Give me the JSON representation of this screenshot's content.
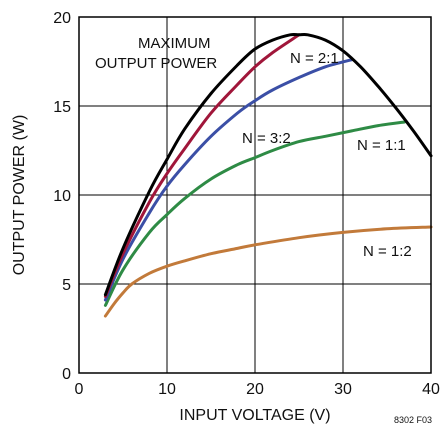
{
  "chart_data": {
    "type": "line",
    "title": "",
    "xlabel": "INPUT VOLTAGE (V)",
    "ylabel": "OUTPUT POWER (W)",
    "xlim": [
      0,
      40
    ],
    "ylim": [
      0,
      20
    ],
    "x_ticks": [
      "0",
      "10",
      "20",
      "30",
      "40"
    ],
    "y_ticks": [
      "0",
      "5",
      "10",
      "15",
      "20"
    ],
    "grid": true,
    "figure_code": "8302 F03",
    "series": [
      {
        "name": "MAXIMUM OUTPUT POWER",
        "label_lines": [
          "MAXIMUM",
          "OUTPUT POWER"
        ],
        "color": "#000000",
        "x": [
          3,
          5,
          8,
          10,
          12,
          15,
          18,
          20,
          22,
          24,
          25,
          26,
          28,
          30,
          32,
          34,
          36,
          38,
          40
        ],
        "y": [
          4.4,
          7.0,
          10.2,
          12.0,
          13.7,
          15.7,
          17.3,
          18.2,
          18.7,
          19.0,
          19.0,
          19.0,
          18.7,
          18.1,
          17.2,
          16.1,
          14.9,
          13.6,
          12.2
        ]
      },
      {
        "name": "N = 2:1",
        "color": "#a0163a",
        "x": [
          3,
          5,
          8,
          10,
          12,
          15,
          18,
          20,
          22,
          25
        ],
        "y": [
          4.3,
          6.7,
          9.6,
          11.2,
          12.6,
          14.6,
          16.2,
          17.2,
          18.0,
          19.0
        ]
      },
      {
        "name": "N = 3:2",
        "color": "#3b4fa6",
        "x": [
          3,
          5,
          8,
          10,
          12,
          15,
          18,
          20,
          22,
          25,
          28,
          31
        ],
        "y": [
          4.1,
          6.4,
          9.0,
          10.5,
          11.7,
          13.3,
          14.6,
          15.3,
          15.9,
          16.6,
          17.2,
          17.6
        ]
      },
      {
        "name": "N = 1:1",
        "color": "#2e8b45",
        "x": [
          3,
          5,
          8,
          10,
          12,
          15,
          18,
          20,
          22,
          25,
          28,
          31,
          34,
          37
        ],
        "y": [
          3.8,
          5.8,
          7.9,
          8.9,
          9.8,
          10.9,
          11.7,
          12.1,
          12.5,
          13.0,
          13.3,
          13.6,
          13.9,
          14.1
        ]
      },
      {
        "name": "N = 1:2",
        "color": "#c27a3a",
        "x": [
          3,
          4,
          5,
          6,
          8,
          10,
          12,
          15,
          18,
          20,
          25,
          30,
          35,
          40
        ],
        "y": [
          3.2,
          3.9,
          4.5,
          5.0,
          5.6,
          6.0,
          6.3,
          6.7,
          7.0,
          7.2,
          7.6,
          7.9,
          8.1,
          8.2
        ]
      }
    ]
  }
}
